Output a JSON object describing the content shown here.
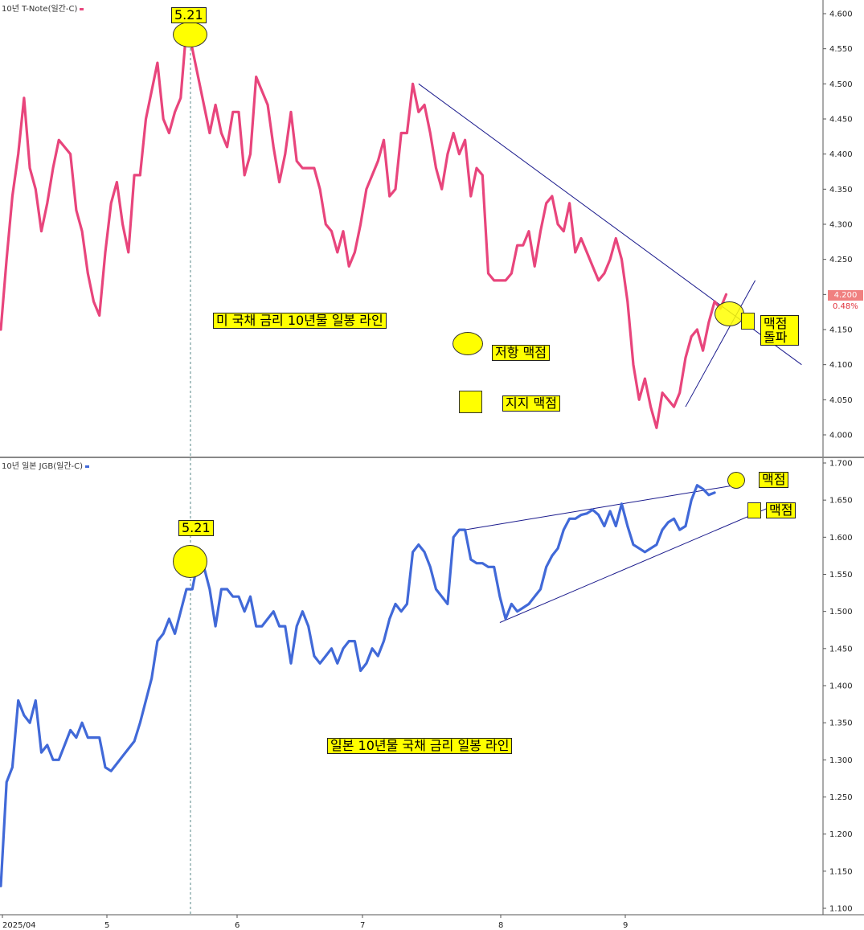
{
  "top_panel": {
    "title": "10년 T-Note(일간-C)",
    "line_color": "#e8457c",
    "price_label": "4.200",
    "change_label": "0.48%",
    "price_label_color": "#ffffff",
    "price_label_bg": "#f08080",
    "change_label_color": "#e0303a",
    "peak_label": "5.21",
    "annotation_main": "미 국채 금리 10년물 일봉 라인",
    "legend_resistance": "저항 맥점",
    "legend_support": "지지 맥점",
    "annotation_breakout": "맥점 돌파"
  },
  "bottom_panel": {
    "title": "10년 일본 JGB(일간-C)",
    "line_color": "#4169d8",
    "peak_label": "5.21",
    "annotation_main": "일본 10년물 국채 금리 일봉 라인",
    "annotation_upper": "맥점",
    "annotation_lower": "맥점"
  },
  "x_axis": {
    "labels": [
      "2025/04",
      "5",
      "6",
      "7",
      "8",
      "9"
    ]
  },
  "chart_data": [
    {
      "type": "line",
      "title": "10년 T-Note(일간-C)",
      "x_index_range": [
        0,
        128
      ],
      "ylim": [
        3.96,
        4.62
      ],
      "y_ticks": [
        "4.600",
        "4.550",
        "4.500",
        "4.450",
        "4.400",
        "4.350",
        "4.300",
        "4.250",
        "4.200",
        "4.150",
        "4.100",
        "4.050",
        "4.000"
      ],
      "series": [
        {
          "values": [
            4.15,
            4.25,
            4.34,
            4.4,
            4.48,
            4.38,
            4.35,
            4.29,
            4.33,
            4.38,
            4.42,
            4.41,
            4.4,
            4.32,
            4.29,
            4.23,
            4.19,
            4.17,
            4.26,
            4.33,
            4.36,
            4.3,
            4.26,
            4.37,
            4.37,
            4.45,
            4.49,
            4.53,
            4.45,
            4.43,
            4.46,
            4.48,
            4.58,
            4.55,
            4.51,
            4.47,
            4.43,
            4.47,
            4.43,
            4.41,
            4.46,
            4.46,
            4.37,
            4.4,
            4.51,
            4.49,
            4.47,
            4.41,
            4.36,
            4.4,
            4.46,
            4.39,
            4.38,
            4.38,
            4.38,
            4.35,
            4.3,
            4.29,
            4.26,
            4.29,
            4.24,
            4.26,
            4.3,
            4.35,
            4.37,
            4.39,
            4.42,
            4.34,
            4.35,
            4.43,
            4.43,
            4.5,
            4.46,
            4.47,
            4.43,
            4.38,
            4.35,
            4.4,
            4.43,
            4.4,
            4.42,
            4.34,
            4.38,
            4.37,
            4.23,
            4.22,
            4.22,
            4.22,
            4.23,
            4.27,
            4.27,
            4.29,
            4.24,
            4.29,
            4.33,
            4.34,
            4.3,
            4.29,
            4.33,
            4.26,
            4.28,
            4.26,
            4.24,
            4.22,
            4.23,
            4.25,
            4.28,
            4.25,
            4.19,
            4.1,
            4.05,
            4.08,
            4.04,
            4.01,
            4.06,
            4.05,
            4.04,
            4.06,
            4.11,
            4.14,
            4.15,
            4.12,
            4.16,
            4.19,
            4.18,
            4.2
          ]
        }
      ],
      "trendlines": [
        {
          "from": [
            72,
            4.5
          ],
          "to": [
            138,
            4.1
          ]
        },
        {
          "from": [
            118,
            4.04
          ],
          "to": [
            130,
            4.22
          ]
        }
      ]
    },
    {
      "type": "line",
      "title": "10년 일본 JGB(일간-C)",
      "x_index_range": [
        0,
        128
      ],
      "ylim": [
        1.09,
        1.71
      ],
      "y_ticks": [
        "1.700",
        "1.650",
        "1.600",
        "1.550",
        "1.500",
        "1.450",
        "1.400",
        "1.350",
        "1.300",
        "1.250",
        "1.200",
        "1.150",
        "1.100"
      ],
      "series": [
        {
          "values": [
            1.13,
            1.27,
            1.29,
            1.38,
            1.36,
            1.35,
            1.38,
            1.31,
            1.32,
            1.3,
            1.3,
            1.32,
            1.34,
            1.33,
            1.35,
            1.33,
            1.33,
            1.33,
            1.29,
            1.285,
            1.295,
            1.305,
            1.315,
            1.325,
            1.35,
            1.38,
            1.41,
            1.46,
            1.47,
            1.49,
            1.47,
            1.5,
            1.53,
            1.53,
            1.57,
            1.56,
            1.53,
            1.48,
            1.53,
            1.53,
            1.52,
            1.52,
            1.5,
            1.52,
            1.48,
            1.48,
            1.49,
            1.5,
            1.48,
            1.48,
            1.43,
            1.48,
            1.5,
            1.48,
            1.44,
            1.43,
            1.44,
            1.45,
            1.43,
            1.45,
            1.46,
            1.46,
            1.42,
            1.43,
            1.45,
            1.44,
            1.46,
            1.49,
            1.51,
            1.5,
            1.51,
            1.58,
            1.59,
            1.58,
            1.56,
            1.53,
            1.52,
            1.51,
            1.6,
            1.61,
            1.61,
            1.57,
            1.565,
            1.565,
            1.56,
            1.56,
            1.52,
            1.49,
            1.51,
            1.5,
            1.505,
            1.51,
            1.52,
            1.53,
            1.56,
            1.575,
            1.585,
            1.61,
            1.625,
            1.625,
            1.63,
            1.632,
            1.637,
            1.63,
            1.615,
            1.635,
            1.615,
            1.645,
            1.615,
            1.59,
            1.585,
            1.58,
            1.585,
            1.59,
            1.61,
            1.62,
            1.625,
            1.61,
            1.615,
            1.65,
            1.67,
            1.665,
            1.657,
            1.66
          ]
        }
      ],
      "trendlines": [
        {
          "from": [
            80,
            1.61
          ],
          "to": [
            128,
            1.672
          ]
        },
        {
          "from": [
            86,
            1.485
          ],
          "to": [
            133,
            1.642
          ]
        }
      ]
    }
  ]
}
